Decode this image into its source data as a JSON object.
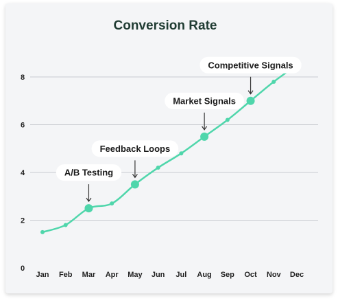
{
  "chart_data": {
    "type": "line",
    "title": "Conversion Rate",
    "xlabel": "",
    "ylabel": "",
    "categories": [
      "Jan",
      "Feb",
      "Mar",
      "Apr",
      "May",
      "Jun",
      "Jul",
      "Aug",
      "Sep",
      "Oct",
      "Nov",
      "Dec"
    ],
    "series": [
      {
        "values": [
          1.5,
          1.8,
          2.5,
          2.7,
          3.5,
          4.2,
          4.8,
          5.5,
          6.2,
          7.0,
          7.8,
          8.5
        ]
      }
    ],
    "ylim": [
      0,
      8.5
    ],
    "yticks": [
      0,
      2,
      4,
      6,
      8
    ],
    "grid": true,
    "legend": "none",
    "annotations": [
      {
        "label": "A/B Testing",
        "category": "Mar"
      },
      {
        "label": "Feedback Loops",
        "category": "May"
      },
      {
        "label": "Market Signals",
        "category": "Aug"
      },
      {
        "label": "Competitive Signals",
        "category": "Oct"
      }
    ],
    "colors": {
      "line": "#4fd6ab",
      "grid": "#c9ccd1",
      "title": "#1f3b32",
      "background": "#f4f5f7"
    }
  }
}
